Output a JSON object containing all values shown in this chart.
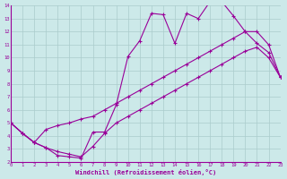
{
  "xlabel": "Windchill (Refroidissement éolien,°C)",
  "bg_color": "#cce9e9",
  "grid_color": "#aacccc",
  "line_color": "#990099",
  "xlim": [
    0,
    23
  ],
  "ylim": [
    2,
    14
  ],
  "xticks": [
    0,
    1,
    2,
    3,
    4,
    5,
    6,
    7,
    8,
    9,
    10,
    11,
    12,
    13,
    14,
    15,
    16,
    17,
    18,
    19,
    20,
    21,
    22,
    23
  ],
  "yticks": [
    2,
    3,
    4,
    5,
    6,
    7,
    8,
    9,
    10,
    11,
    12,
    13,
    14
  ],
  "line1_x": [
    0,
    1,
    2,
    3,
    4,
    5,
    6,
    7,
    8,
    9,
    10,
    11,
    12,
    13,
    14,
    15,
    16,
    17,
    18,
    19,
    20,
    21,
    22,
    23
  ],
  "line1_y": [
    5.0,
    4.2,
    3.5,
    3.1,
    2.5,
    2.4,
    2.3,
    4.3,
    4.3,
    6.4,
    10.1,
    11.3,
    13.4,
    13.3,
    11.1,
    13.4,
    13.0,
    14.3,
    14.3,
    13.2,
    12.0,
    11.1,
    10.4,
    8.5
  ],
  "line2_x": [
    0,
    1,
    2,
    3,
    4,
    5,
    6,
    7,
    8,
    9,
    10,
    11,
    12,
    13,
    14,
    15,
    16,
    17,
    18,
    19,
    20,
    21,
    22,
    23
  ],
  "line2_y": [
    5.0,
    4.2,
    3.5,
    4.5,
    4.8,
    5.0,
    5.3,
    5.5,
    6.0,
    6.5,
    7.0,
    7.5,
    8.0,
    8.5,
    9.0,
    9.5,
    10.0,
    10.5,
    11.0,
    11.5,
    12.0,
    12.0,
    11.0,
    8.5
  ],
  "line3_x": [
    0,
    1,
    2,
    3,
    4,
    5,
    6,
    7,
    8,
    9,
    10,
    11,
    12,
    13,
    14,
    15,
    16,
    17,
    18,
    19,
    20,
    21,
    22,
    23
  ],
  "line3_y": [
    5.0,
    4.2,
    3.5,
    3.1,
    2.8,
    2.6,
    2.4,
    3.2,
    4.2,
    5.0,
    5.5,
    6.0,
    6.5,
    7.0,
    7.5,
    8.0,
    8.5,
    9.0,
    9.5,
    10.0,
    10.5,
    10.8,
    10.0,
    8.5
  ]
}
